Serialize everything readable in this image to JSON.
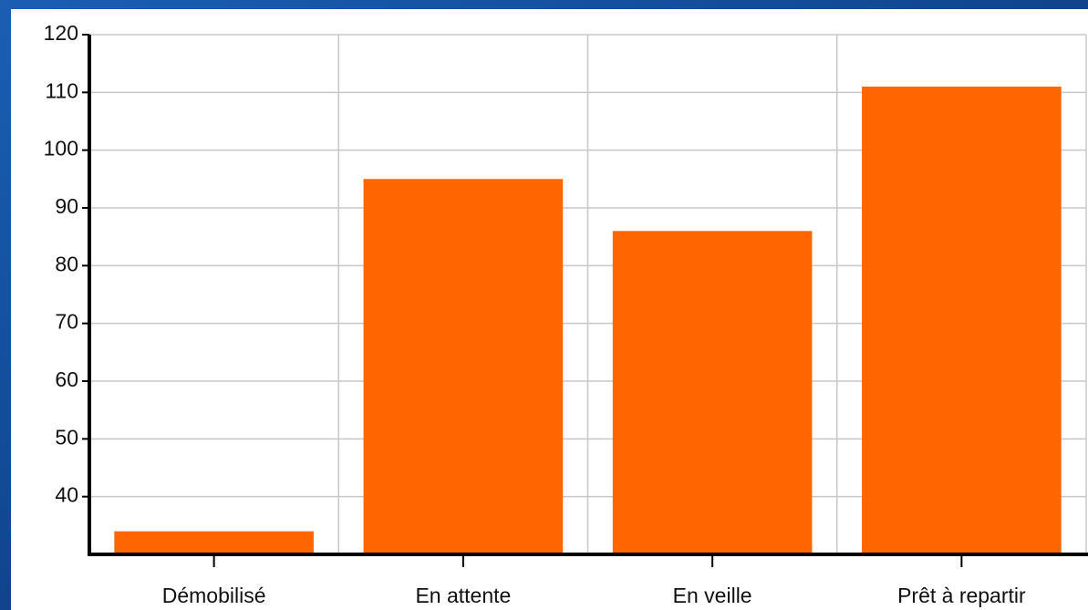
{
  "chart_data": {
    "type": "bar",
    "categories": [
      "Démobilisé",
      "En attente",
      "En veille",
      "Prêt à repartir"
    ],
    "values": [
      34,
      95,
      86,
      111
    ],
    "color": "#ff6600",
    "ylim": [
      30,
      120
    ],
    "yticks": [
      40,
      50,
      60,
      70,
      80,
      90,
      100,
      110,
      120
    ],
    "grid": true
  }
}
